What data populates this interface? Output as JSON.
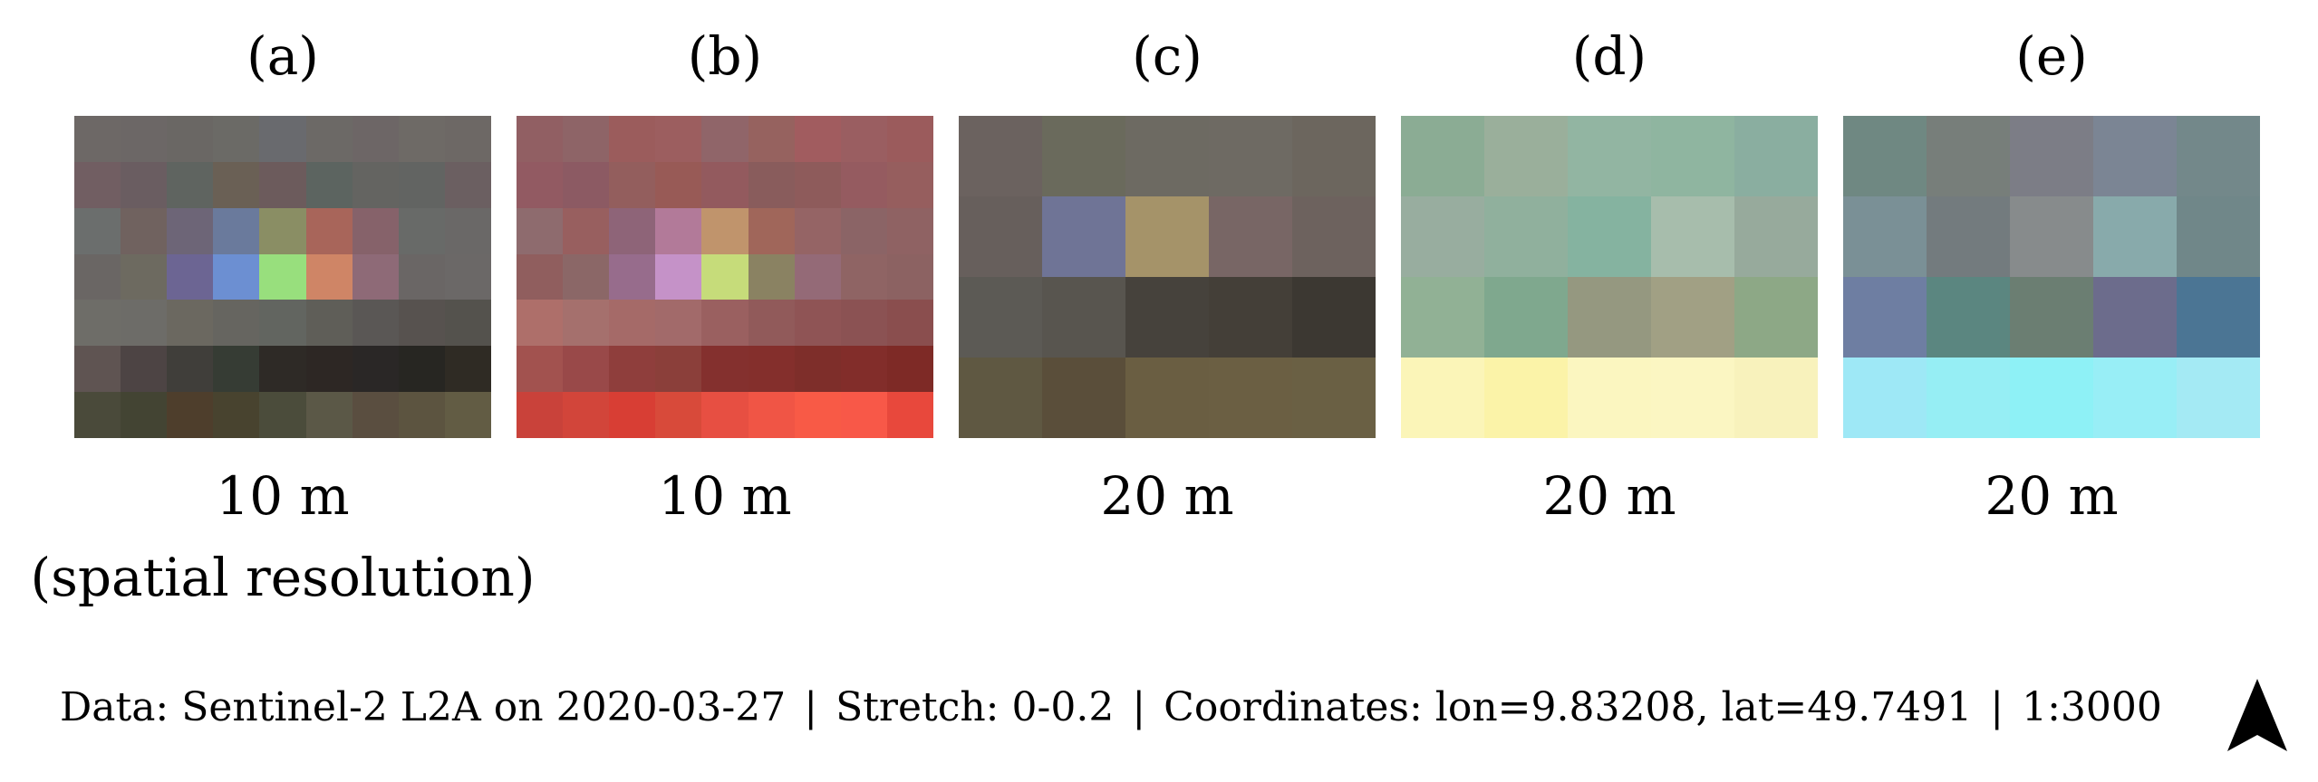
{
  "panels": [
    {
      "label": "(a)",
      "resolution": "10 m",
      "note": "(spatial resolution)",
      "cols": 9,
      "rows": 7,
      "colors": [
        "#6d6866",
        "#6c6766",
        "#6a6764",
        "#6b6a66",
        "#696a6e",
        "#6c6966",
        "#6d6666",
        "#6e6a66",
        "#6d6865",
        "#715e62",
        "#6a5d61",
        "#5f6460",
        "#6a6055",
        "#6c5b5c",
        "#5c6460",
        "#646461",
        "#626462",
        "#6b5f61",
        "#6b6e6d",
        "#70625f",
        "#6d6577",
        "#6a7a9c",
        "#8a8e64",
        "#a8655a",
        "#86626a",
        "#686a68",
        "#6a6867",
        "#6a6664",
        "#6d6a60",
        "#6c6593",
        "#6c8fd2",
        "#98df7d",
        "#cf8566",
        "#8e6a77",
        "#6a6665",
        "#6b6867",
        "#6e6d68",
        "#6d6c68",
        "#6b6860",
        "#666560",
        "#626560",
        "#5f5e58",
        "#5a5755",
        "#57524f",
        "#54524d",
        "#5f5452",
        "#4d4444",
        "#403e3a",
        "#363c34",
        "#2e2a26",
        "#2d2724",
        "#2a2726",
        "#272622",
        "#2f2b24",
        "#4a4a3a",
        "#434433",
        "#4e3e2c",
        "#48432f",
        "#4b4c3b",
        "#5b5847",
        "#5a4e40",
        "#5c5440",
        "#625c44"
      ]
    },
    {
      "label": "(b)",
      "resolution": "10 m",
      "note": "",
      "cols": 9,
      "rows": 7,
      "colors": [
        "#915f63",
        "#8e6467",
        "#9b5c5c",
        "#9c5e5f",
        "#906569",
        "#96625f",
        "#a15c5f",
        "#9a5e61",
        "#9b5b5c",
        "#925a62",
        "#8c5a63",
        "#935e5d",
        "#985a56",
        "#935a5e",
        "#895c5c",
        "#8e5b5b",
        "#955b60",
        "#965e5e",
        "#8e6b6e",
        "#985f5f",
        "#8e6478",
        "#b27a99",
        "#c0946c",
        "#a0665a",
        "#956465",
        "#8b6466",
        "#8f6263",
        "#905e5e",
        "#8b6767",
        "#976c8c",
        "#c592c8",
        "#c6dc7a",
        "#8a8262",
        "#946a77",
        "#8f6464",
        "#8c6262",
        "#ae6f6a",
        "#a5706d",
        "#a56a68",
        "#a26a6a",
        "#9a6060",
        "#915a5a",
        "#8f5455",
        "#8b5253",
        "#8a4e4e",
        "#a2524f",
        "#994949",
        "#8f3e3c",
        "#8b3f3a",
        "#84302e",
        "#842f2c",
        "#7e2e2a",
        "#822d2a",
        "#7e2a26",
        "#c9423a",
        "#d2453a",
        "#d83e34",
        "#d84a3a",
        "#e74f42",
        "#f05545",
        "#f85a46",
        "#f85848",
        "#e8483c"
      ]
    },
    {
      "label": "(c)",
      "resolution": "20 m",
      "note": "",
      "cols": 5,
      "rows": 4,
      "colors": [
        "#6b625f",
        "#6a6a5c",
        "#6d6a62",
        "#6e6a63",
        "#6c665e",
        "#675f5c",
        "#6f7496",
        "#a59369",
        "#786665",
        "#6d625e",
        "#5c5a55",
        "#58554f",
        "#46423c",
        "#443f38",
        "#3c3832",
        "#5f5842",
        "#5a4e3a",
        "#6a5e42",
        "#6b5f43",
        "#6a6044"
      ]
    },
    {
      "label": "(d)",
      "resolution": "20 m",
      "note": "",
      "cols": 5,
      "rows": 4,
      "colors": [
        "#8bac94",
        "#9aaf9b",
        "#92b5a2",
        "#8fb5a0",
        "#8aaea0",
        "#98ad9f",
        "#90b09d",
        "#85b3a0",
        "#a7bdac",
        "#97aa9c",
        "#91b195",
        "#7fa88e",
        "#959880",
        "#a1a084",
        "#8da886",
        "#fbf5b8",
        "#fbf3a8",
        "#fbf6c0",
        "#fbf6c2",
        "#f8f2bc"
      ]
    },
    {
      "label": "(e)",
      "resolution": "20 m",
      "note": "",
      "cols": 5,
      "rows": 4,
      "colors": [
        "#6f8882",
        "#777e7a",
        "#7c7d86",
        "#7b8594",
        "#73888a",
        "#7a9096",
        "#737b7e",
        "#878b8c",
        "#88aaab",
        "#708789",
        "#6e7ea2",
        "#5b8680",
        "#6b7e72",
        "#6c6c8c",
        "#4b7594",
        "#9ee8f6",
        "#96eef4",
        "#8ef1f6",
        "#98eef6",
        "#a4eaf4"
      ]
    }
  ],
  "caption": {
    "data": "Data: Sentinel-2 L2A on 2020-03-27",
    "stretch": "Stretch: 0-0.2",
    "coordinates": "Coordinates: lon=9.83208, lat=49.7491",
    "scale": "1:3000",
    "separator": "|"
  },
  "icons": {
    "north": "north-arrow-icon"
  }
}
